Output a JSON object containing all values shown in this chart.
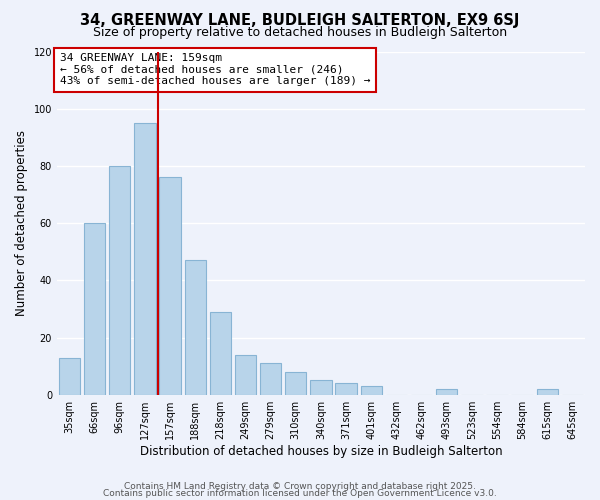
{
  "title": "34, GREENWAY LANE, BUDLEIGH SALTERTON, EX9 6SJ",
  "subtitle": "Size of property relative to detached houses in Budleigh Salterton",
  "xlabel": "Distribution of detached houses by size in Budleigh Salterton",
  "ylabel": "Number of detached properties",
  "bar_labels": [
    "35sqm",
    "66sqm",
    "96sqm",
    "127sqm",
    "157sqm",
    "188sqm",
    "218sqm",
    "249sqm",
    "279sqm",
    "310sqm",
    "340sqm",
    "371sqm",
    "401sqm",
    "432sqm",
    "462sqm",
    "493sqm",
    "523sqm",
    "554sqm",
    "584sqm",
    "615sqm",
    "645sqm"
  ],
  "bar_values": [
    13,
    60,
    80,
    95,
    76,
    47,
    29,
    14,
    11,
    8,
    5,
    4,
    3,
    0,
    0,
    2,
    0,
    0,
    0,
    2,
    0
  ],
  "bar_color": "#b8d4ea",
  "bar_edge_color": "#88b4d4",
  "vline_color": "#cc0000",
  "annotation_text": "34 GREENWAY LANE: 159sqm\n← 56% of detached houses are smaller (246)\n43% of semi-detached houses are larger (189) →",
  "annotation_box_color": "#ffffff",
  "annotation_box_edge": "#cc0000",
  "ylim": [
    0,
    120
  ],
  "yticks": [
    0,
    20,
    40,
    60,
    80,
    100,
    120
  ],
  "footer_line1": "Contains HM Land Registry data © Crown copyright and database right 2025.",
  "footer_line2": "Contains public sector information licensed under the Open Government Licence v3.0.",
  "background_color": "#eef2fb",
  "grid_color": "#ffffff",
  "title_fontsize": 10.5,
  "subtitle_fontsize": 9,
  "xlabel_fontsize": 8.5,
  "ylabel_fontsize": 8.5,
  "tick_fontsize": 7,
  "annotation_fontsize": 8,
  "footer_fontsize": 6.5
}
